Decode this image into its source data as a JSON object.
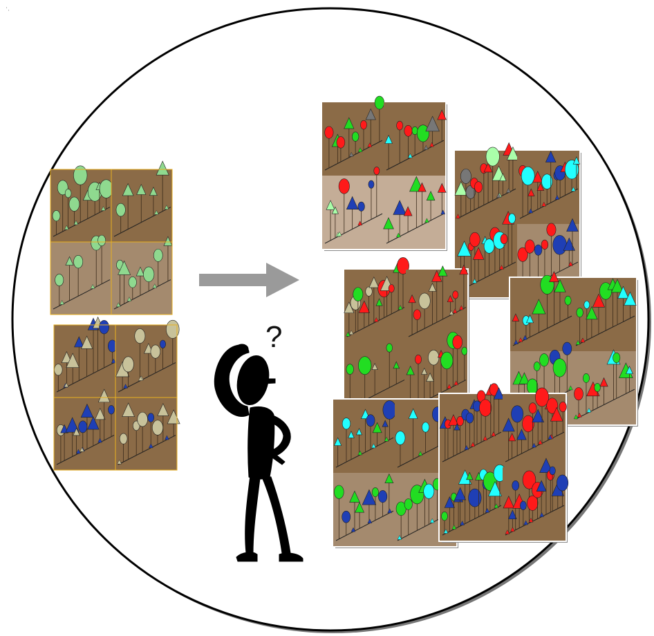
{
  "figure": {
    "question_mark": "?",
    "corner_mark": "' ,"
  },
  "input_cards": [
    {
      "id": "input-card-1",
      "panels": [
        {
          "tone": "dark",
          "palette": [
            "#8fd98f"
          ],
          "density": 9
        },
        {
          "tone": "dark",
          "palette": [
            "#8fd98f"
          ],
          "density": 5
        },
        {
          "tone": "light",
          "palette": [
            "#8fd98f"
          ],
          "density": 5
        },
        {
          "tone": "light",
          "palette": [
            "#8fd98f"
          ],
          "density": 7
        }
      ]
    },
    {
      "id": "input-card-2",
      "panels": [
        {
          "tone": "dark",
          "palette": [
            "#c8c29a",
            "#1f3fb5"
          ],
          "density": 9
        },
        {
          "tone": "dark",
          "palette": [
            "#c8c29a",
            "#1f3fb5"
          ],
          "density": 7
        },
        {
          "tone": "dark",
          "palette": [
            "#c8c29a",
            "#1f3fb5"
          ],
          "density": 10
        },
        {
          "tone": "dark",
          "palette": [
            "#c8c29a",
            "#1f3fb5"
          ],
          "density": 8
        }
      ]
    }
  ],
  "output_cards": [
    {
      "id": "output-card-1",
      "panels": [
        {
          "tone": "dark",
          "palette": [
            "#ff1a1a",
            "#22dd22",
            "#777777"
          ],
          "density": 8
        },
        {
          "tone": "dark",
          "palette": [
            "#ff1a1a",
            "#22ffff",
            "#22dd22",
            "#777777"
          ],
          "density": 7
        },
        {
          "tone": "pale",
          "palette": [
            "#ff1a1a",
            "#aaffaa",
            "#1f3fb5"
          ],
          "density": 7
        },
        {
          "tone": "pale",
          "palette": [
            "#ff1a1a",
            "#22dd22",
            "#1f3fb5"
          ],
          "density": 7
        }
      ]
    },
    {
      "id": "output-card-2",
      "panels": [
        {
          "tone": "dark",
          "palette": [
            "#ff1a1a",
            "#aaffaa",
            "#777777"
          ],
          "density": 12
        },
        {
          "tone": "dark",
          "palette": [
            "#22ffff",
            "#1f3fb5",
            "#ff1a1a"
          ],
          "density": 12
        },
        {
          "tone": "dark",
          "palette": [
            "#ff1a1a",
            "#22ffff"
          ],
          "density": 12
        },
        {
          "tone": "light",
          "palette": [
            "#ff1a1a",
            "#22ffff",
            "#1f3fb5"
          ],
          "density": 8
        }
      ]
    },
    {
      "id": "output-card-3",
      "panels": [
        {
          "tone": "dark",
          "palette": [
            "#c8c29a",
            "#22dd22",
            "#ff1a1a"
          ],
          "density": 12
        },
        {
          "tone": "dark",
          "palette": [
            "#c8c29a",
            "#22dd22",
            "#ff1a1a"
          ],
          "density": 9
        },
        {
          "tone": "dark",
          "palette": [
            "#c8c29a",
            "#22dd22"
          ],
          "density": 5
        },
        {
          "tone": "dark",
          "palette": [
            "#22dd22",
            "#ff1a1a",
            "#c8c29a"
          ],
          "density": 10
        }
      ]
    },
    {
      "id": "output-card-4",
      "panels": [
        {
          "tone": "dark",
          "palette": [
            "#ff1a1a",
            "#22ffff",
            "#22dd22",
            "#1f3fb5"
          ],
          "density": 8
        },
        {
          "tone": "dark",
          "palette": [
            "#ff1a1a",
            "#22dd22",
            "#22ffff"
          ],
          "density": 9
        },
        {
          "tone": "light",
          "palette": [
            "#1f3fb5",
            "#22dd22"
          ],
          "density": 8
        },
        {
          "tone": "light",
          "palette": [
            "#ff1a1a",
            "#22dd22",
            "#22ffff"
          ],
          "density": 9
        }
      ]
    },
    {
      "id": "output-card-5",
      "panels": [
        {
          "tone": "dark",
          "palette": [
            "#22dd22",
            "#22ffff",
            "#1f3fb5"
          ],
          "density": 9
        },
        {
          "tone": "dark",
          "palette": [
            "#22ffff",
            "#1f3fb5",
            "#22dd22"
          ],
          "density": 5
        },
        {
          "tone": "light",
          "palette": [
            "#22dd22",
            "#1f3fb5"
          ],
          "density": 8
        },
        {
          "tone": "light",
          "palette": [
            "#22dd22",
            "#22ffff",
            "#1f3fb5"
          ],
          "density": 8
        }
      ]
    },
    {
      "id": "output-card-6",
      "panels": [
        {
          "tone": "dark",
          "palette": [
            "#1f3fb5",
            "#ff1a1a"
          ],
          "density": 14
        },
        {
          "tone": "dark",
          "palette": [
            "#ff1a1a",
            "#1f3fb5"
          ],
          "density": 12
        },
        {
          "tone": "dark",
          "palette": [
            "#1f3fb5",
            "#22dd22",
            "#22ffff"
          ],
          "density": 14
        },
        {
          "tone": "dark",
          "palette": [
            "#1f3fb5",
            "#ff1a1a"
          ],
          "density": 14
        }
      ]
    }
  ],
  "colors": {
    "circle_stroke": "#000000",
    "arrow": "#9a9a9a",
    "panel_dark": "#8b6b47",
    "panel_light": "#a48a6e",
    "panel_pale": "#c4ad97",
    "input_frame": "#e8b020",
    "figure": "#000000"
  }
}
